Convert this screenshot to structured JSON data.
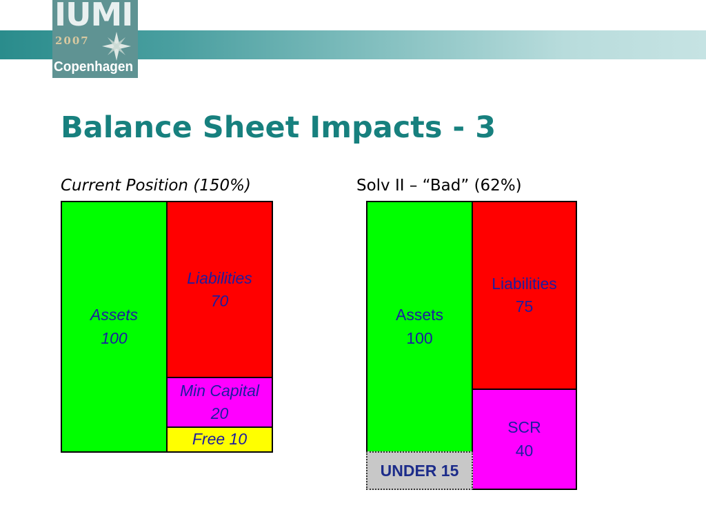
{
  "logo": {
    "wordmark": "IUMI",
    "year": "2007",
    "city": "Copenhagen"
  },
  "title": "Balance Sheet Impacts - 3",
  "left_panel": {
    "heading": "Current Position (150%)",
    "assets": "Assets\n100",
    "liabilities": "Liabilities\n70",
    "min_capital": "Min Capital\n20",
    "free": "Free 10"
  },
  "right_panel": {
    "heading": "Solv II – “Bad” (62%)",
    "assets": "Assets\n100",
    "liabilities": "Liabilities\n75",
    "scr": "SCR\n40",
    "under": "UNDER 15"
  }
}
